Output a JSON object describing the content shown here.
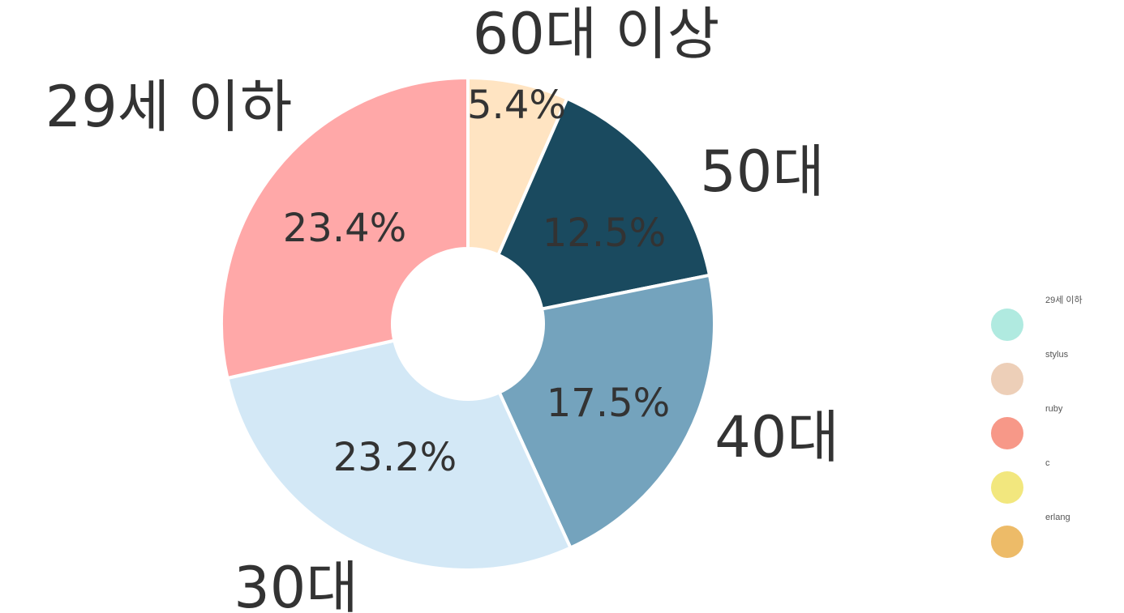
{
  "chart_data": {
    "type": "pie",
    "donut": true,
    "slices": [
      {
        "label": "60대 이상",
        "value": 5.4,
        "pct_label": "5.4%",
        "color": "#FFE4C2"
      },
      {
        "label": "50대",
        "value": 12.5,
        "pct_label": "12.5%",
        "color": "#1A4A5F"
      },
      {
        "label": "40대",
        "value": 17.5,
        "pct_label": "17.5%",
        "color": "#74A3BD"
      },
      {
        "label": "30대",
        "value": 23.2,
        "pct_label": "23.2%",
        "color": "#D3E8F6"
      },
      {
        "label": "29세 이하",
        "value": 23.4,
        "pct_label": "23.4%",
        "color": "#FFA8A8"
      }
    ],
    "legend": {
      "position": "right",
      "items": [
        {
          "label": "29세 이하",
          "color": "#B0EAE0"
        },
        {
          "label": "stylus",
          "color": "#EDCFB8"
        },
        {
          "label": "ruby",
          "color": "#F79888"
        },
        {
          "label": "c",
          "color": "#F2E77E"
        },
        {
          "label": "erlang",
          "color": "#EDBB68"
        }
      ]
    }
  }
}
